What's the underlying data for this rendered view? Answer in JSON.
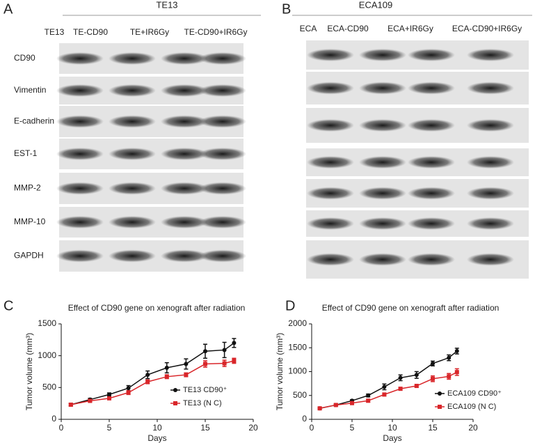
{
  "panels": {
    "A": {
      "label": "A",
      "title": "TE13",
      "lanes": [
        "TE13",
        "TE-CD90",
        "TE+IR6Gy",
        "TE-CD90+IR6Gy"
      ],
      "rows": [
        "CD90",
        "Vimentin",
        "E-cadherin",
        "EST-1",
        "MMP-2",
        "MMP-10",
        "GAPDH"
      ]
    },
    "B": {
      "label": "B",
      "title": "ECA109",
      "lanes": [
        "ECA",
        "ECA-CD90",
        "ECA+IR6Gy",
        "ECA-CD90+IR6Gy"
      ]
    }
  },
  "chart_data": [
    {
      "type": "line",
      "panel_label": "C",
      "title": "Effect of CD90 gene on xenograft after radiation",
      "x_label": "Days",
      "y_label": "Tumor volume (mm³)",
      "x": [
        1,
        3,
        5,
        7,
        9,
        11,
        13,
        15,
        17,
        18
      ],
      "xlim": [
        0,
        20
      ],
      "xticks": [
        0,
        5,
        10,
        15,
        20
      ],
      "ylim": [
        0,
        1500
      ],
      "yticks": [
        0,
        500,
        1000,
        1500
      ],
      "series": [
        {
          "name": "TE13 CD90⁺",
          "color": "#111111",
          "marker": "circle",
          "values": [
            230,
            310,
            390,
            490,
            700,
            810,
            870,
            1070,
            1090,
            1200
          ],
          "errors": [
            20,
            20,
            25,
            40,
            60,
            80,
            80,
            110,
            120,
            70
          ]
        },
        {
          "name": "TE13 (N C)",
          "color": "#d9262a",
          "marker": "square",
          "values": [
            230,
            290,
            330,
            420,
            590,
            670,
            700,
            870,
            880,
            920
          ],
          "errors": [
            20,
            20,
            20,
            30,
            30,
            30,
            30,
            50,
            50,
            40
          ]
        }
      ]
    },
    {
      "type": "line",
      "panel_label": "D",
      "title": "Effect of CD90 gene on xenograft after radiation",
      "x_label": "Days",
      "y_label": "Tumor volume (mm³)",
      "x": [
        1,
        3,
        5,
        7,
        9,
        11,
        13,
        15,
        17,
        18
      ],
      "xlim": [
        0,
        20
      ],
      "xticks": [
        0,
        5,
        10,
        15,
        20
      ],
      "ylim": [
        0,
        2000
      ],
      "yticks": [
        0,
        500,
        1000,
        1500,
        2000
      ],
      "series": [
        {
          "name": "ECA109 CD90⁺",
          "color": "#111111",
          "marker": "circle",
          "values": [
            230,
            300,
            390,
            500,
            680,
            870,
            930,
            1170,
            1290,
            1430
          ],
          "errors": [
            20,
            20,
            20,
            30,
            60,
            60,
            70,
            50,
            60,
            60
          ]
        },
        {
          "name": "ECA109 (N C)",
          "color": "#d9262a",
          "marker": "square",
          "values": [
            230,
            300,
            340,
            390,
            520,
            640,
            700,
            850,
            900,
            990
          ],
          "errors": [
            20,
            20,
            20,
            30,
            30,
            30,
            30,
            60,
            60,
            70
          ]
        }
      ]
    }
  ]
}
